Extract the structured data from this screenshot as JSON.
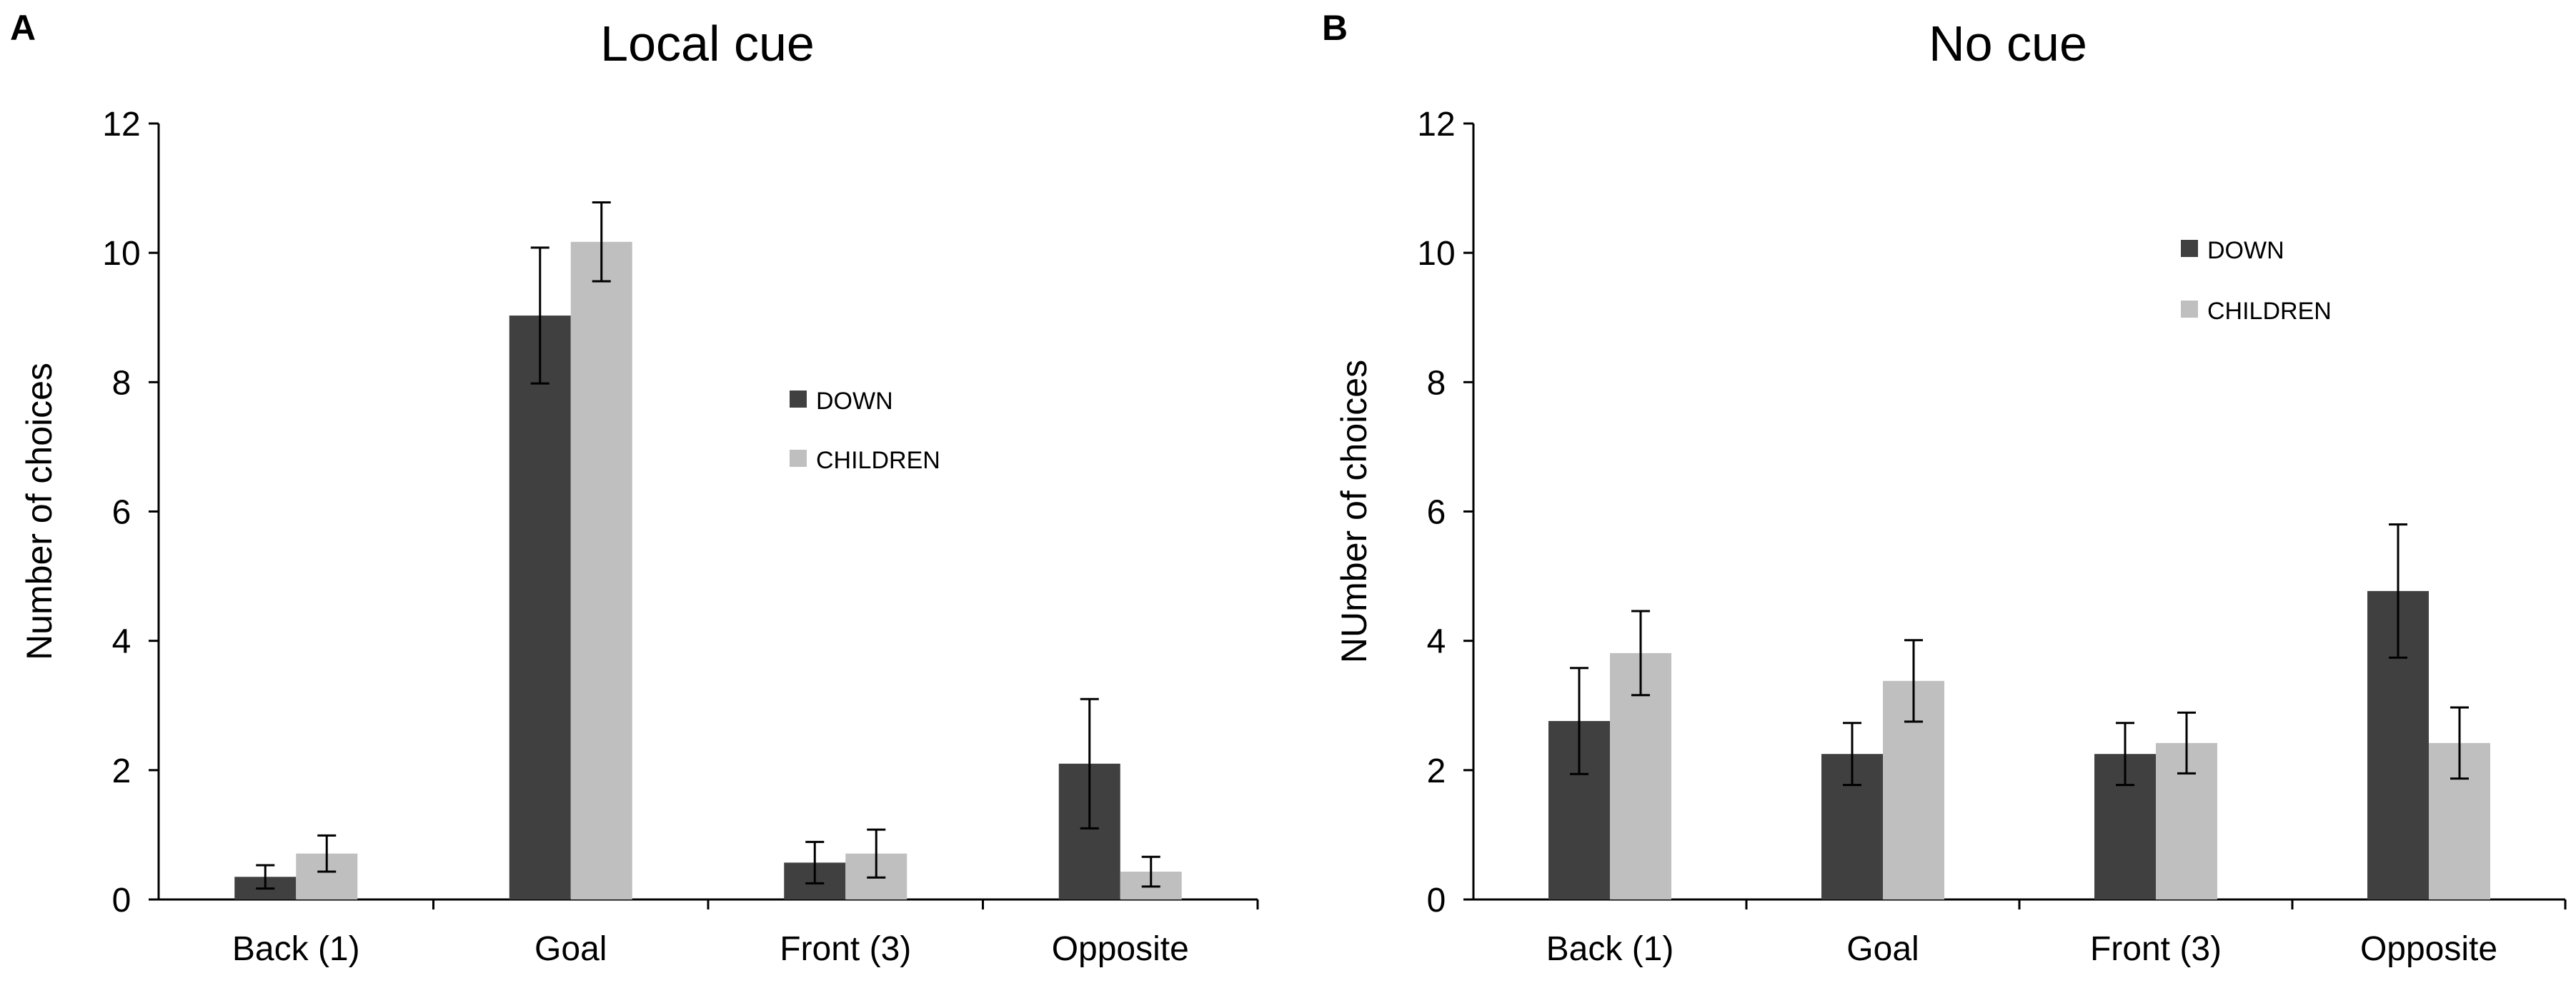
{
  "figure": {
    "colors": {
      "down": "#404040",
      "children": "#bfbfbf",
      "axis": "#000000",
      "background": "#ffffff"
    }
  },
  "chart_data": [
    {
      "panel_label": "A",
      "type": "bar",
      "title": "Local cue",
      "xlabel": "",
      "ylabel": "Number of choices",
      "ylim": [
        0,
        12
      ],
      "yticks": [
        "0",
        "2",
        "4",
        "6",
        "8",
        "10",
        "12"
      ],
      "ytick_values": [
        0,
        2,
        4,
        6,
        8,
        10,
        12
      ],
      "categories": [
        "Back (1)",
        "Goal",
        "Front (3)",
        "Opposite"
      ],
      "legend_position": "center-right",
      "series": [
        {
          "name": "DOWN",
          "color": "#404040",
          "values": [
            0.35,
            9.03,
            0.57,
            2.1
          ],
          "errors": [
            0.18,
            1.05,
            0.32,
            1.0
          ]
        },
        {
          "name": "CHILDREN",
          "color": "#bfbfbf",
          "values": [
            0.71,
            10.17,
            0.71,
            0.43
          ],
          "errors": [
            0.28,
            0.61,
            0.37,
            0.23
          ]
        }
      ]
    },
    {
      "panel_label": "B",
      "type": "bar",
      "title": "No cue",
      "xlabel": "",
      "ylabel": "NUmber of choices",
      "ylim": [
        0,
        12
      ],
      "yticks": [
        "0",
        "2",
        "4",
        "6",
        "8",
        "10",
        "12"
      ],
      "ytick_values": [
        0,
        2,
        4,
        6,
        8,
        10,
        12
      ],
      "categories": [
        "Back (1)",
        "Goal",
        "Front (3)",
        "Opposite"
      ],
      "legend_position": "top-right",
      "series": [
        {
          "name": "DOWN",
          "color": "#404040",
          "values": [
            2.76,
            2.25,
            2.25,
            4.77
          ],
          "errors": [
            0.82,
            0.48,
            0.48,
            1.03
          ]
        },
        {
          "name": "CHILDREN",
          "color": "#bfbfbf",
          "values": [
            3.81,
            3.38,
            2.42,
            2.42
          ],
          "errors": [
            0.65,
            0.63,
            0.47,
            0.55
          ]
        }
      ]
    }
  ]
}
